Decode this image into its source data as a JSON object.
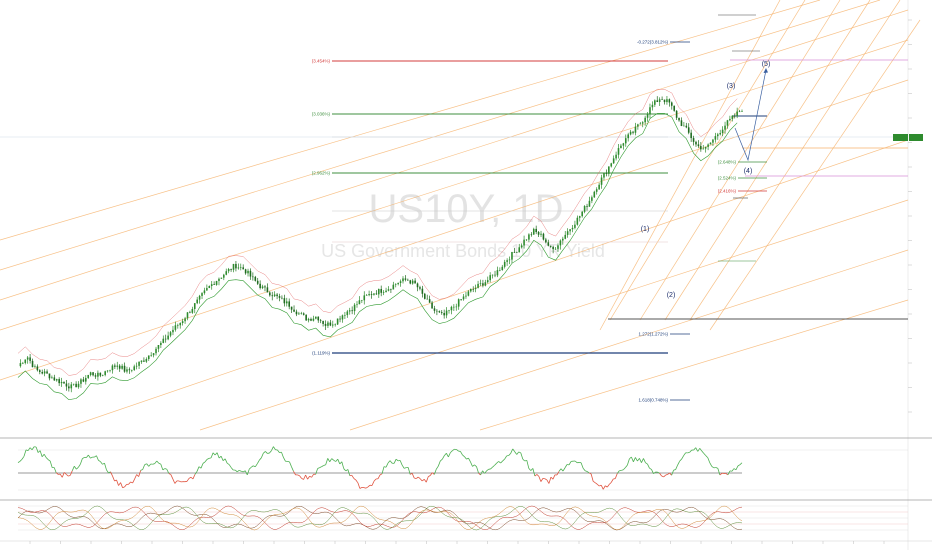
{
  "title": "US10Y, 1D",
  "subtitle": "US Government Bonds 10 YR Yield",
  "colors": {
    "up": "#2e8b2e",
    "down": "#c0392b",
    "stop_long": "#2e9a2e",
    "stop_short": "#e05050",
    "channel": "#f6b26b",
    "blue_level": "#1f3f7a",
    "red_level": "#d33c3c",
    "green_level": "#3f8f3f",
    "pink_level": "#d98fd9",
    "gray_level": "#555555"
  },
  "fib_levels": [
    {
      "label": "-0.272(3.812%)",
      "color": "blue"
    },
    {
      "label": "(3.454%)",
      "color": "red"
    },
    {
      "label": "(3.036%)",
      "color": "green"
    },
    {
      "label": "(2.962%)",
      "color": "green"
    },
    {
      "label": "(1.119%)",
      "color": "blue"
    },
    {
      "label": "1.272(1.272%)",
      "color": "blue"
    },
    {
      "label": "1.618(0.748%)",
      "color": "blue"
    },
    {
      "label": "(2.648%)",
      "color": "green"
    },
    {
      "label": "(2.524%)",
      "color": "green"
    },
    {
      "label": "(2.416%)",
      "color": "red"
    }
  ],
  "wave_labels": [
    "(1)",
    "(2)",
    "(3)",
    "(4)",
    "(5)"
  ],
  "chart_data": {
    "type": "line",
    "title": "US10Y, 1D",
    "subtitle": "US Government Bonds 10 YR Yield",
    "series": [
      {
        "values": [
          1.05,
          1.12,
          1.02,
          1.0,
          0.96,
          0.93,
          0.9,
          0.94,
          1.0,
          0.98,
          1.03,
          1.06,
          1.01,
          1.05,
          1.1,
          1.16,
          1.22,
          1.3,
          1.36,
          1.44,
          1.52,
          1.6,
          1.66,
          1.71,
          1.76,
          1.73,
          1.66,
          1.6,
          1.56,
          1.52,
          1.48,
          1.42,
          1.38,
          1.4,
          1.34,
          1.36,
          1.42,
          1.46,
          1.52,
          1.56,
          1.58,
          1.6,
          1.64,
          1.66,
          1.62,
          1.52,
          1.44,
          1.4,
          1.46,
          1.52,
          1.58,
          1.62,
          1.66,
          1.72,
          1.8,
          1.86,
          1.94,
          2.0,
          1.96,
          1.86,
          1.94,
          2.02,
          2.1,
          2.2,
          2.32,
          2.42,
          2.54,
          2.64,
          2.7,
          2.78,
          2.88,
          2.94,
          2.9,
          2.78,
          2.7,
          2.6,
          2.58,
          2.66,
          2.74,
          2.8,
          2.86
        ]
      }
    ]
  }
}
